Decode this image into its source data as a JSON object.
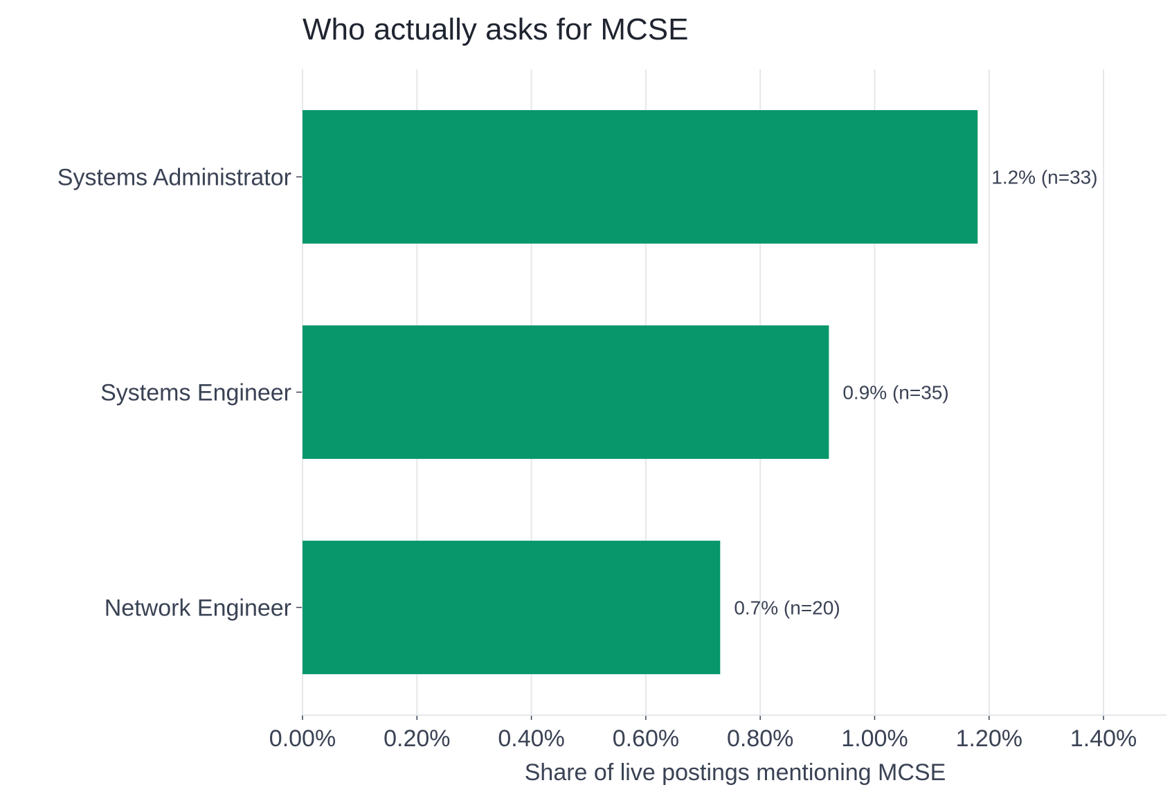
{
  "chart_data": {
    "type": "bar",
    "orientation": "horizontal",
    "title": "Who actually asks for MCSE",
    "xlabel": "Share of live postings mentioning MCSE",
    "ylabel": "",
    "categories": [
      "Systems Administrator",
      "Systems Engineer",
      "Network Engineer"
    ],
    "values": [
      1.18,
      0.92,
      0.73
    ],
    "data_labels": [
      "1.2%  (n=33)",
      "0.9%  (n=35)",
      "0.7%  (n=20)"
    ],
    "x_ticks": [
      "0.00%",
      "0.20%",
      "0.40%",
      "0.60%",
      "0.80%",
      "1.00%",
      "1.20%",
      "1.40%"
    ],
    "x_tick_values": [
      0,
      0.2,
      0.4,
      0.6,
      0.8,
      1.0,
      1.2,
      1.4
    ],
    "xlim": [
      0,
      1.51
    ],
    "grid": "vertical",
    "legend": "none",
    "bar_color": "#07976b"
  }
}
